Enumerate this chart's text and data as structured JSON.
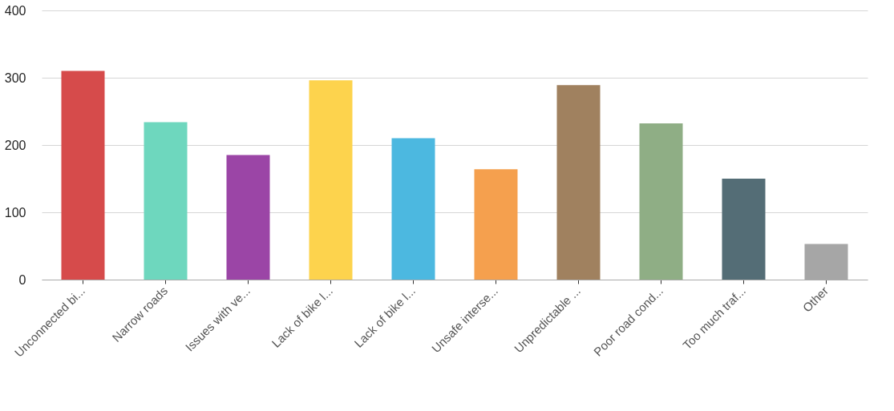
{
  "chart_data": {
    "type": "bar",
    "categories": [
      "Unconnected bi...",
      "Narrow roads",
      "Issues with ve...",
      "Lack of bike l...",
      "Lack of bike l...",
      "Unsafe interse...",
      "Unpredictable ...",
      "Poor road cond...",
      "Too much traf...",
      "Other"
    ],
    "values": [
      310,
      234,
      185,
      296,
      210,
      164,
      289,
      232,
      150,
      53
    ],
    "colors": [
      "#d64b4b",
      "#6ed7be",
      "#9b45a6",
      "#fdd34d",
      "#4cb8e0",
      "#f5a04e",
      "#a0815f",
      "#8fae85",
      "#546d76",
      "#a6a6a6"
    ],
    "ylim": [
      0,
      400
    ],
    "yticks": [
      0,
      100,
      200,
      300,
      400
    ],
    "grid": "y"
  }
}
